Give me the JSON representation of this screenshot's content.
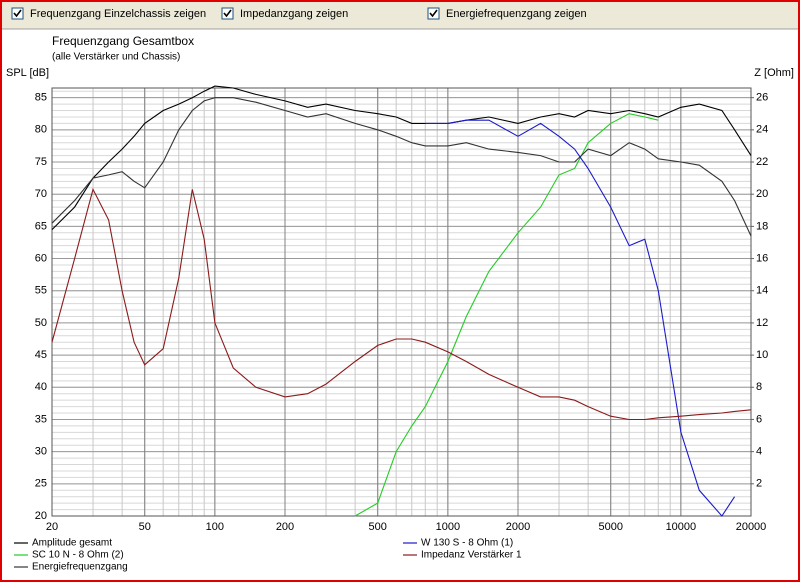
{
  "controls": [
    {
      "label": "Frequenzgang Einzelchassis zeigen",
      "checked": true
    },
    {
      "label": "Impedanzgang zeigen",
      "checked": true
    },
    {
      "label": "Energiefrequenzgang zeigen",
      "checked": true
    }
  ],
  "chart_data": {
    "type": "line",
    "title": "Frequenzgang Gesamtbox",
    "subtitle": "(alle Verstärker und Chassis)",
    "y_label": "SPL [dB]",
    "y2_label": "Z [Ohm]",
    "x_scale": "log",
    "grid": true,
    "minor_grid": true,
    "xlim": [
      20,
      20000
    ],
    "xticks": [
      20,
      50,
      100,
      200,
      500,
      1000,
      2000,
      5000,
      10000,
      20000
    ],
    "ylim": [
      20,
      86.5
    ],
    "yticks": [
      20,
      25,
      30,
      35,
      40,
      45,
      50,
      55,
      60,
      65,
      70,
      75,
      80,
      85
    ],
    "y2lim": [
      0,
      26.6
    ],
    "y2ticks": [
      2,
      4,
      6,
      8,
      10,
      12,
      14,
      16,
      18,
      20,
      22,
      24,
      26
    ],
    "x": [
      20,
      25,
      30,
      35,
      40,
      45,
      50,
      60,
      70,
      80,
      90,
      100,
      120,
      150,
      200,
      250,
      300,
      400,
      500,
      600,
      700,
      800,
      1000,
      1200,
      1500,
      2000,
      2500,
      3000,
      3500,
      4000,
      5000,
      6000,
      7000,
      8000,
      10000,
      12000,
      15000,
      17000,
      20000
    ],
    "series": [
      {
        "name": "Amplitude gesamt",
        "color": "#000000",
        "values": [
          64.5,
          68,
          72.5,
          75,
          77,
          79,
          81,
          83,
          84,
          85,
          86,
          86.8,
          86.5,
          85.5,
          84.5,
          83.5,
          84,
          83,
          82.5,
          82,
          81,
          81,
          81,
          81.5,
          82,
          81,
          82,
          82.5,
          82,
          83,
          82.5,
          83,
          82.5,
          82,
          83.5,
          84,
          83,
          80,
          76
        ]
      },
      {
        "name": "SC 10 N - 8 Ohm (2)",
        "color": "#22cc22",
        "values": [
          null,
          null,
          null,
          null,
          null,
          null,
          null,
          null,
          null,
          null,
          null,
          null,
          null,
          null,
          null,
          null,
          null,
          20,
          22,
          30,
          34,
          37,
          44,
          51,
          58,
          64,
          68,
          73,
          74,
          78,
          81,
          82.5,
          82,
          81.5,
          null,
          null,
          null,
          null,
          null
        ]
      },
      {
        "name": "Energiefrequenzgang",
        "color": "#333333",
        "values": [
          65.5,
          69,
          72.5,
          73,
          73.5,
          72,
          71,
          75,
          80,
          83,
          84.5,
          85,
          85,
          84.3,
          83,
          82,
          82.5,
          81,
          80,
          79,
          78,
          77.5,
          77.5,
          78,
          77,
          76.5,
          76,
          75,
          75,
          77,
          76,
          78,
          77,
          75.5,
          75,
          74.5,
          72,
          69,
          63.5
        ]
      },
      {
        "name": "W 130 S - 8 Ohm (1)",
        "color": "#1a1acc",
        "values": [
          null,
          null,
          null,
          null,
          null,
          null,
          null,
          null,
          null,
          null,
          null,
          null,
          null,
          null,
          null,
          null,
          null,
          null,
          null,
          null,
          null,
          81,
          81,
          81.5,
          81.5,
          79,
          81,
          79,
          77,
          74,
          68,
          62,
          63,
          55,
          33,
          24,
          20,
          23,
          null
        ]
      },
      {
        "name": "Impedanz Verstärker 1",
        "color": "#8b1a1a",
        "axis": "y2",
        "values": [
          10.8,
          16,
          20.3,
          18.4,
          14,
          10.8,
          9.4,
          10.4,
          14.8,
          20.3,
          17.2,
          12,
          9.2,
          8,
          7.4,
          7.6,
          8.2,
          9.6,
          10.6,
          11,
          11,
          10.8,
          10.2,
          9.6,
          8.8,
          8,
          7.4,
          7.4,
          7.2,
          6.8,
          6.2,
          6,
          6,
          6.1,
          6.2,
          6.3,
          6.4,
          6.5,
          6.6
        ]
      }
    ]
  }
}
